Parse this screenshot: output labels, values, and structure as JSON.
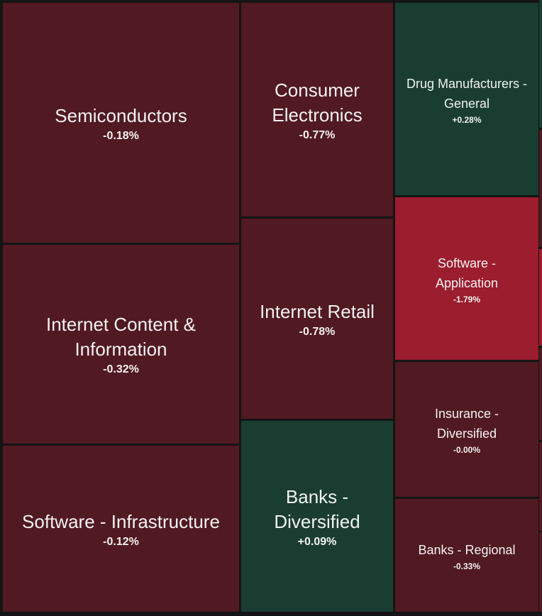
{
  "chart_data": {
    "type": "treemap",
    "colors": {
      "negative": "#511921",
      "strong_negative": "#9b1d2e",
      "positive": "#1a3d31",
      "border": "#141416"
    },
    "items": [
      {
        "name": "Semiconductors",
        "change": "-0.18%",
        "value": -0.18
      },
      {
        "name": "Internet Content & Information",
        "change": "-0.32%",
        "value": -0.32
      },
      {
        "name": "Software - Infrastructure",
        "change": "-0.12%",
        "value": -0.12
      },
      {
        "name": "Consumer Electronics",
        "change": "-0.77%",
        "value": -0.77
      },
      {
        "name": "Internet Retail",
        "change": "-0.78%",
        "value": -0.78
      },
      {
        "name": "Banks - Diversified",
        "change": "+0.09%",
        "value": 0.09
      },
      {
        "name": "Drug Manufacturers - General",
        "change": "+0.28%",
        "value": 0.28
      },
      {
        "name": "Software - Application",
        "change": "-1.79%",
        "value": -1.79
      },
      {
        "name": "Insurance - Diversified",
        "change": "-0.00%",
        "value": -0.0
      },
      {
        "name": "Banks - Regional",
        "change": "-0.33%",
        "value": -0.33
      }
    ]
  }
}
